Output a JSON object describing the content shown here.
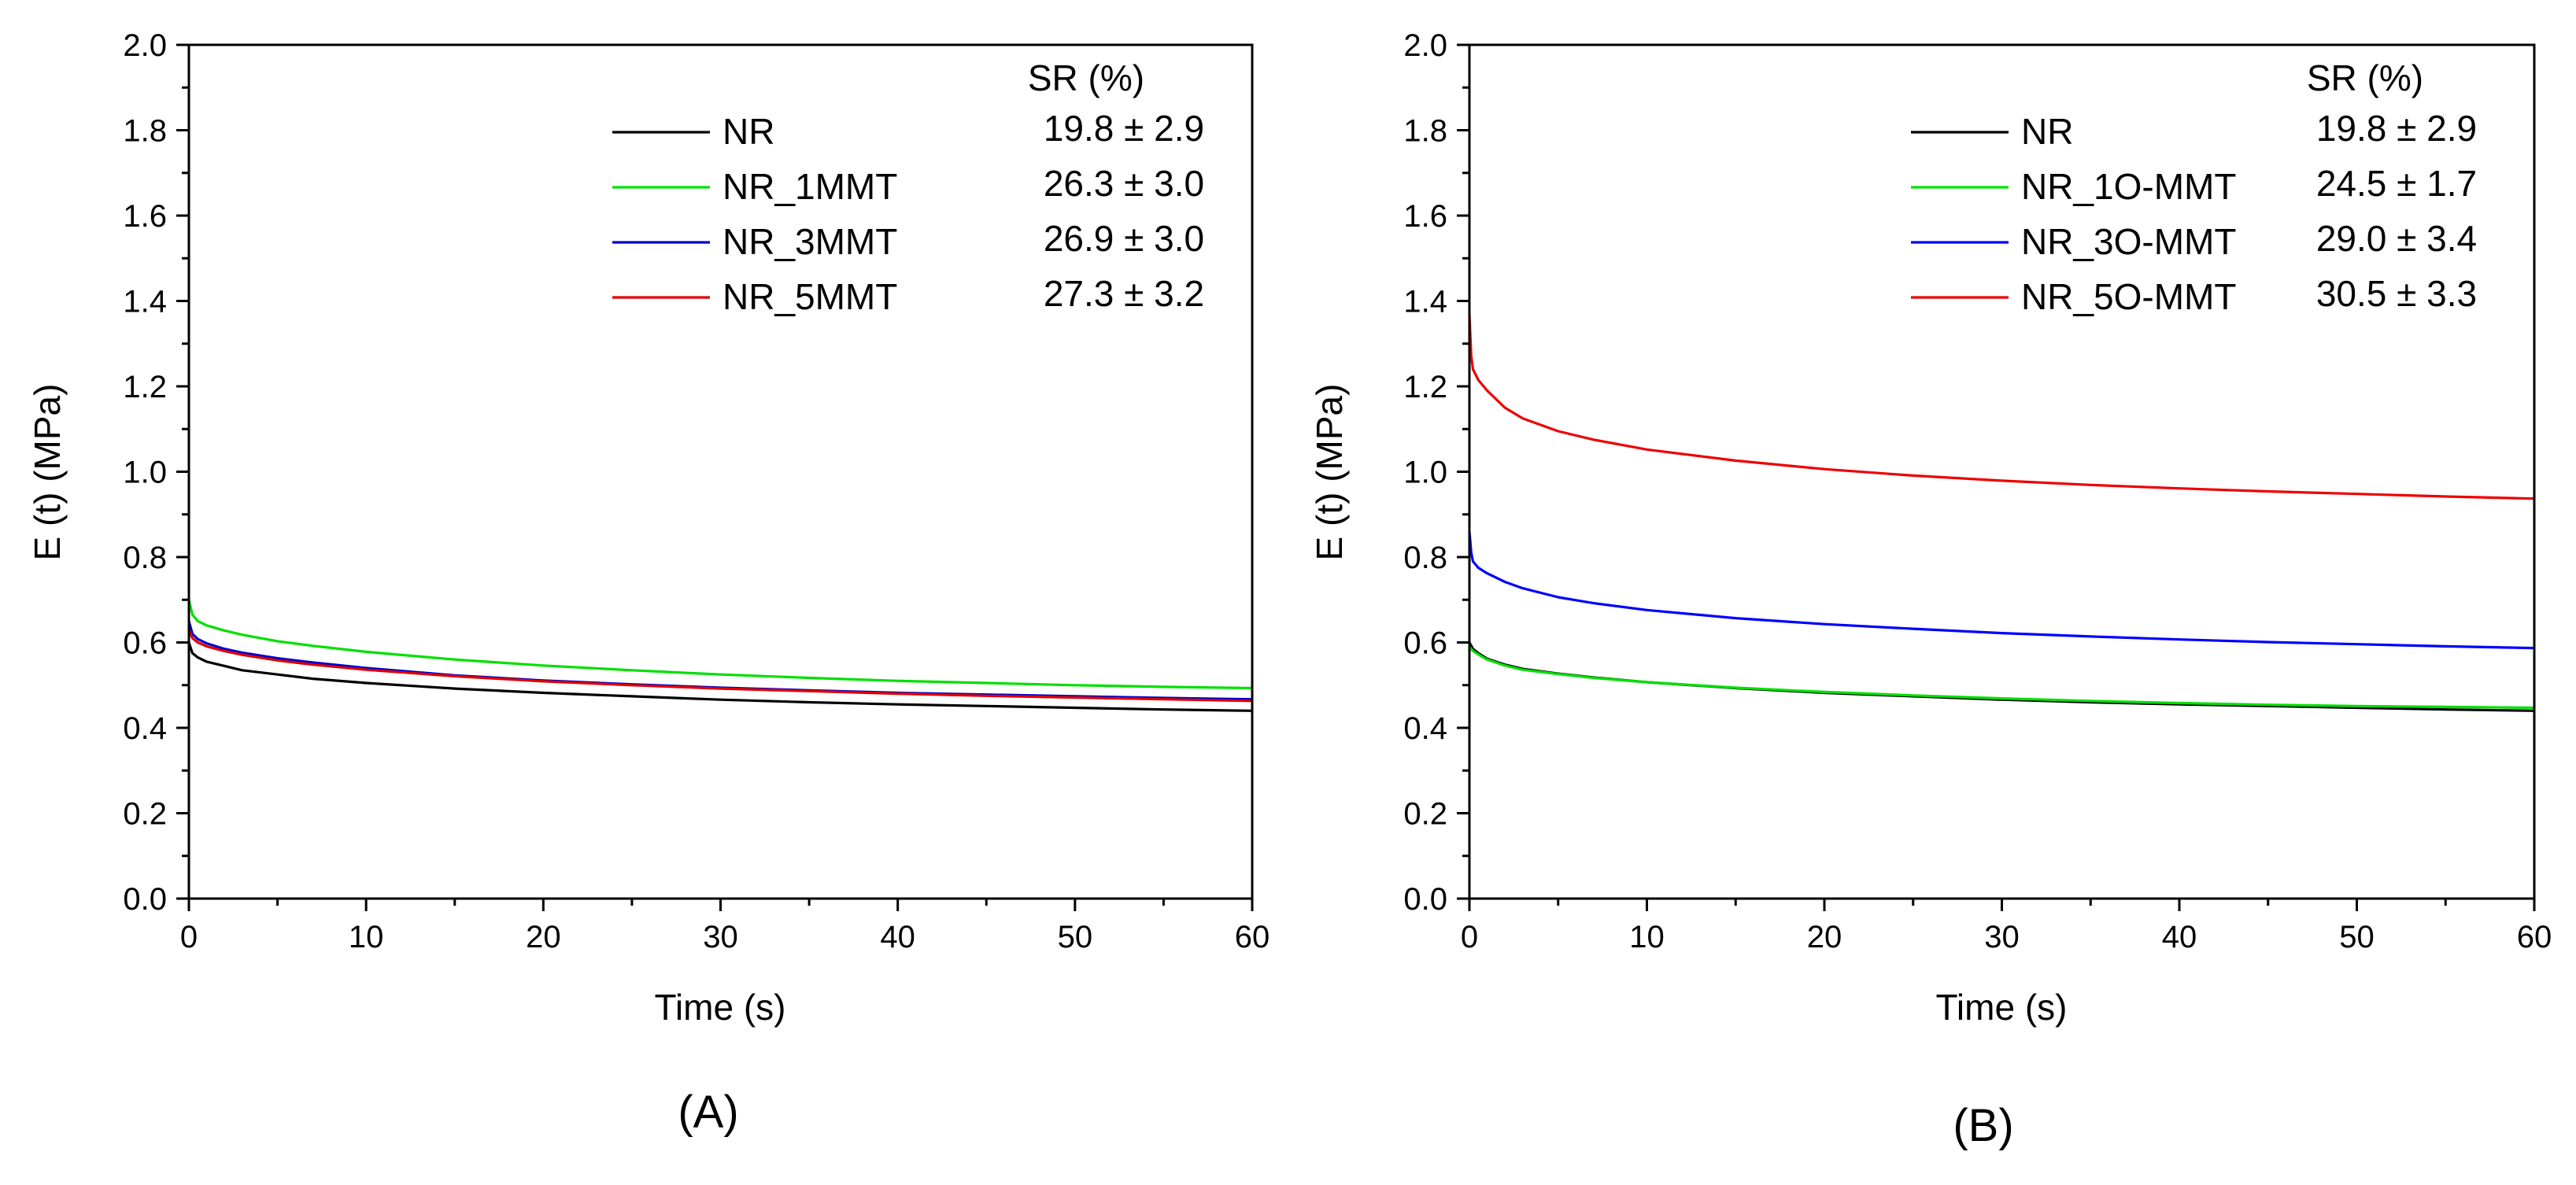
{
  "chart_data": [
    {
      "type": "line",
      "panel_label": "(A)",
      "xlabel": "Time (s)",
      "ylabel": "E (t) (MPa)",
      "xlim": [
        0,
        60
      ],
      "ylim": [
        0.0,
        2.0
      ],
      "xticks": [
        0,
        10,
        20,
        30,
        40,
        50,
        60
      ],
      "yticks": [
        0.0,
        0.2,
        0.4,
        0.6,
        0.8,
        1.0,
        1.2,
        1.4,
        1.6,
        1.8,
        2.0
      ],
      "grid": false,
      "legend_position": "top-right",
      "sr_header": "SR (%)",
      "series": [
        {
          "name": "NR",
          "color": "#000000",
          "sr": "19.8 ± 2.9",
          "x": [
            0,
            0.2,
            0.5,
            1,
            2,
            3,
            5,
            7,
            10,
            15,
            20,
            25,
            30,
            35,
            40,
            45,
            50,
            55,
            60
          ],
          "y": [
            0.6,
            0.575,
            0.565,
            0.555,
            0.545,
            0.535,
            0.525,
            0.515,
            0.505,
            0.492,
            0.482,
            0.474,
            0.466,
            0.46,
            0.455,
            0.451,
            0.447,
            0.443,
            0.44
          ]
        },
        {
          "name": "NR_1MMT",
          "color": "#00e000",
          "sr": "26.3 ± 3.0",
          "x": [
            0,
            0.2,
            0.5,
            1,
            2,
            3,
            5,
            7,
            10,
            15,
            20,
            25,
            30,
            35,
            40,
            45,
            50,
            55,
            60
          ],
          "y": [
            0.7,
            0.665,
            0.65,
            0.64,
            0.628,
            0.618,
            0.603,
            0.592,
            0.578,
            0.56,
            0.546,
            0.535,
            0.525,
            0.517,
            0.51,
            0.505,
            0.5,
            0.496,
            0.493
          ]
        },
        {
          "name": "NR_3MMT",
          "color": "#0000cc",
          "sr": "26.9 ± 3.0",
          "x": [
            0,
            0.2,
            0.5,
            1,
            2,
            3,
            5,
            7,
            10,
            15,
            20,
            25,
            30,
            35,
            40,
            45,
            50,
            55,
            60
          ],
          "y": [
            0.65,
            0.62,
            0.608,
            0.598,
            0.585,
            0.576,
            0.563,
            0.553,
            0.54,
            0.523,
            0.511,
            0.502,
            0.494,
            0.488,
            0.482,
            0.478,
            0.474,
            0.47,
            0.467
          ]
        },
        {
          "name": "NR_5MMT",
          "color": "#e00000",
          "sr": "27.3 ± 3.2",
          "x": [
            0,
            0.2,
            0.5,
            1,
            2,
            3,
            5,
            7,
            10,
            15,
            20,
            25,
            30,
            35,
            40,
            45,
            50,
            55,
            60
          ],
          "y": [
            0.63,
            0.61,
            0.6,
            0.591,
            0.58,
            0.571,
            0.558,
            0.548,
            0.536,
            0.521,
            0.509,
            0.5,
            0.492,
            0.486,
            0.48,
            0.475,
            0.471,
            0.467,
            0.463
          ]
        }
      ]
    },
    {
      "type": "line",
      "panel_label": "(B)",
      "xlabel": "Time (s)",
      "ylabel": "E (t) (MPa)",
      "xlim": [
        0,
        60
      ],
      "ylim": [
        0.0,
        2.0
      ],
      "xticks": [
        0,
        10,
        20,
        30,
        40,
        50,
        60
      ],
      "yticks": [
        0.0,
        0.2,
        0.4,
        0.6,
        0.8,
        1.0,
        1.2,
        1.4,
        1.6,
        1.8,
        2.0
      ],
      "grid": false,
      "legend_position": "top-right",
      "sr_header": "SR (%)",
      "series": [
        {
          "name": "NR",
          "color": "#000000",
          "sr": "19.8 ± 2.9",
          "x": [
            0,
            0.2,
            0.5,
            1,
            2,
            3,
            5,
            7,
            10,
            15,
            20,
            25,
            30,
            35,
            40,
            45,
            50,
            55,
            60
          ],
          "y": [
            0.6,
            0.585,
            0.575,
            0.562,
            0.548,
            0.538,
            0.527,
            0.518,
            0.507,
            0.493,
            0.482,
            0.474,
            0.466,
            0.46,
            0.455,
            0.451,
            0.447,
            0.443,
            0.44
          ]
        },
        {
          "name": "NR_1O-MMT",
          "color": "#00e000",
          "sr": "24.5 ± 1.7",
          "x": [
            0,
            0.2,
            0.5,
            1,
            2,
            3,
            5,
            7,
            10,
            15,
            20,
            25,
            30,
            35,
            40,
            45,
            50,
            55,
            60
          ],
          "y": [
            0.59,
            0.58,
            0.572,
            0.56,
            0.546,
            0.536,
            0.526,
            0.517,
            0.507,
            0.494,
            0.484,
            0.476,
            0.469,
            0.463,
            0.458,
            0.454,
            0.451,
            0.449,
            0.447
          ]
        },
        {
          "name": "NR_3O-MMT",
          "color": "#0000ff",
          "sr": "29.0 ± 3.4",
          "x": [
            0,
            0.1,
            0.2,
            0.5,
            1,
            2,
            3,
            5,
            7,
            10,
            15,
            20,
            25,
            30,
            35,
            40,
            45,
            50,
            55,
            60
          ],
          "y": [
            0.86,
            0.81,
            0.79,
            0.775,
            0.762,
            0.742,
            0.727,
            0.706,
            0.692,
            0.676,
            0.657,
            0.643,
            0.632,
            0.622,
            0.614,
            0.607,
            0.601,
            0.596,
            0.591,
            0.587
          ]
        },
        {
          "name": "NR_5O-MMT",
          "color": "#ee0000",
          "sr": "30.5 ± 3.3",
          "x": [
            0,
            0.05,
            0.1,
            0.2,
            0.5,
            1,
            2,
            3,
            5,
            7,
            10,
            15,
            20,
            25,
            30,
            35,
            40,
            45,
            50,
            55,
            60
          ],
          "y": [
            1.37,
            1.32,
            1.27,
            1.24,
            1.215,
            1.19,
            1.15,
            1.125,
            1.095,
            1.075,
            1.052,
            1.026,
            1.006,
            0.991,
            0.979,
            0.969,
            0.961,
            0.954,
            0.948,
            0.942,
            0.937
          ]
        }
      ]
    }
  ]
}
